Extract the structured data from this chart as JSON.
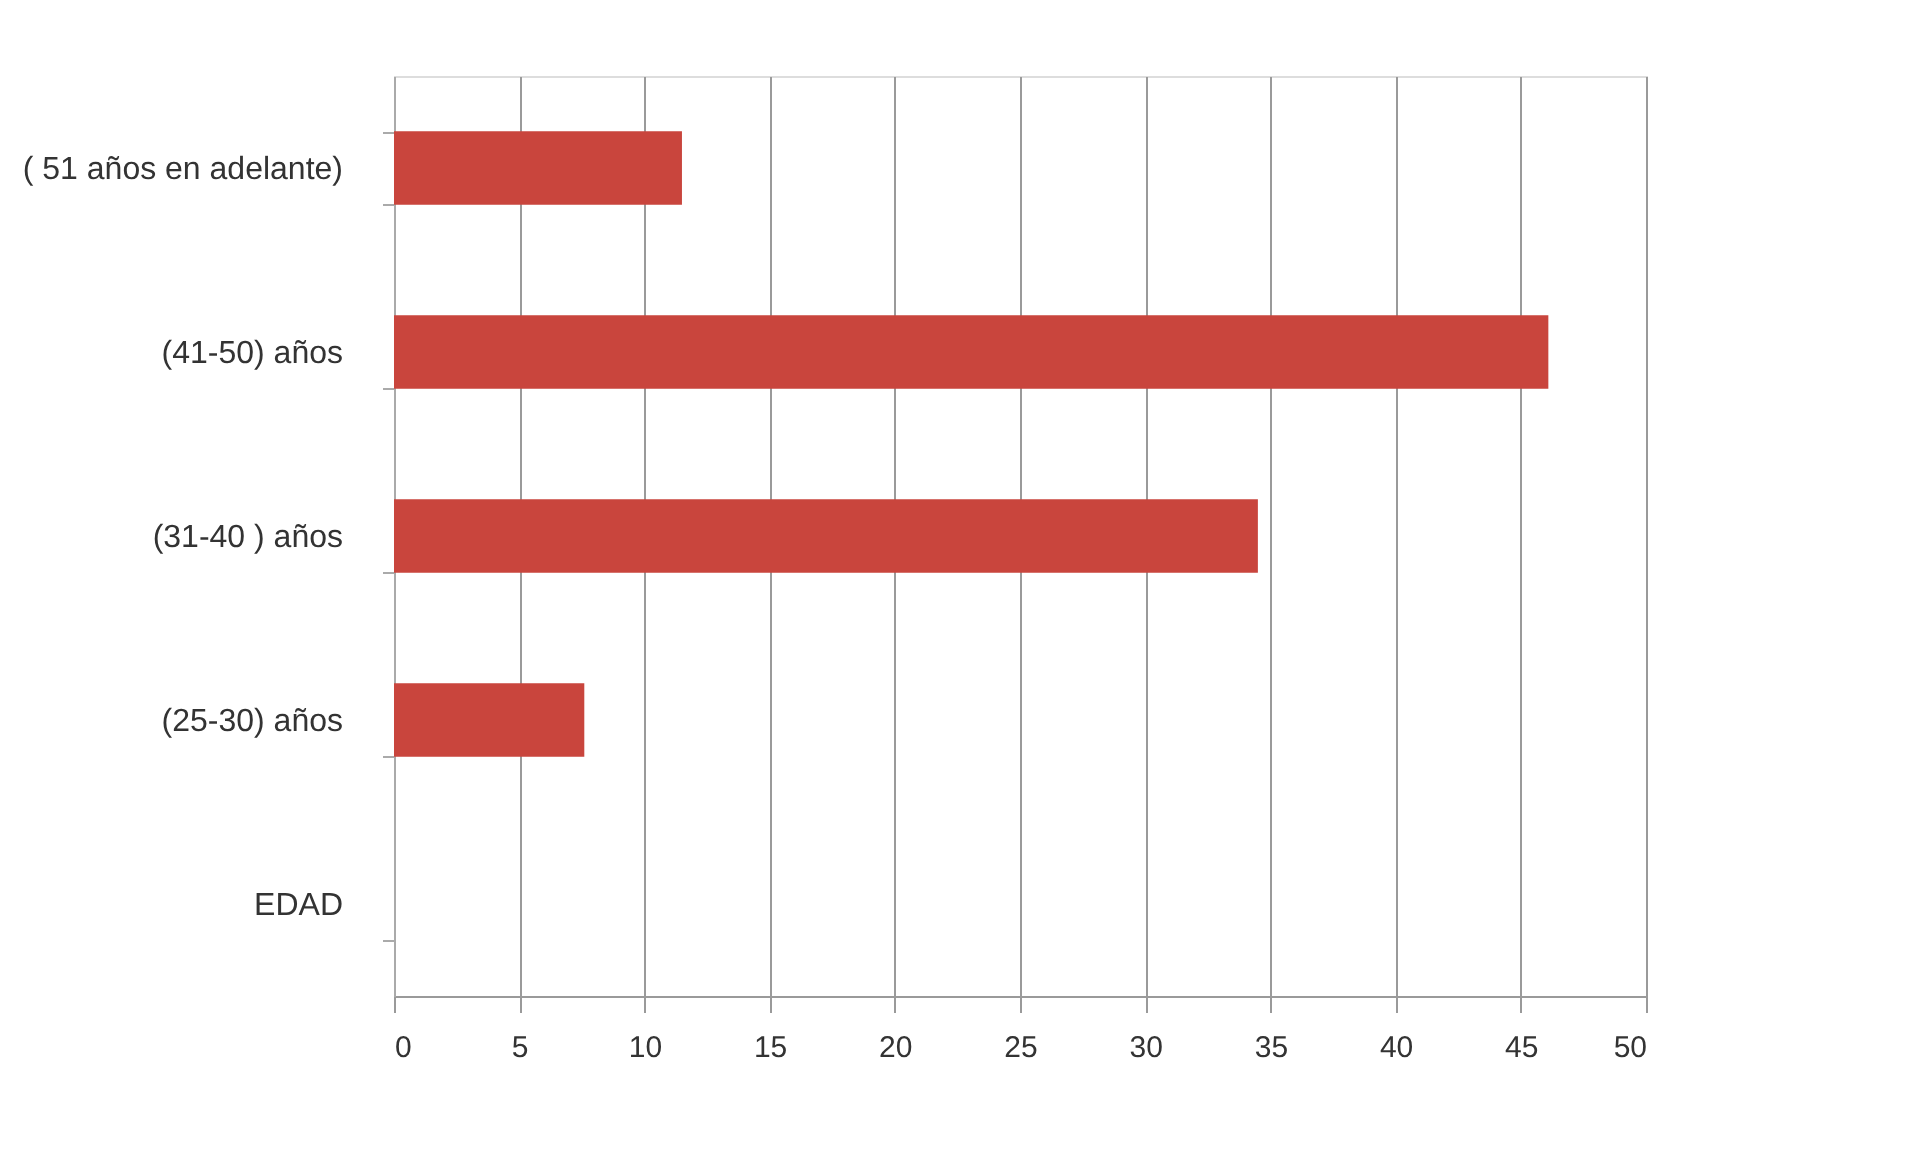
{
  "chart_data": {
    "type": "bar",
    "orientation": "horizontal",
    "categories": [
      "( 51 años en adelante)",
      "(41-50) años",
      "(31-40 ) años",
      "(25-30) años",
      "EDAD"
    ],
    "values": [
      11.5,
      46.1,
      34.5,
      7.6,
      null
    ],
    "color": "#c9453d",
    "xlim": [
      0,
      50
    ],
    "xticks": [
      0,
      5,
      10,
      15,
      20,
      25,
      30,
      35,
      40,
      45,
      50
    ],
    "grid": "x"
  }
}
